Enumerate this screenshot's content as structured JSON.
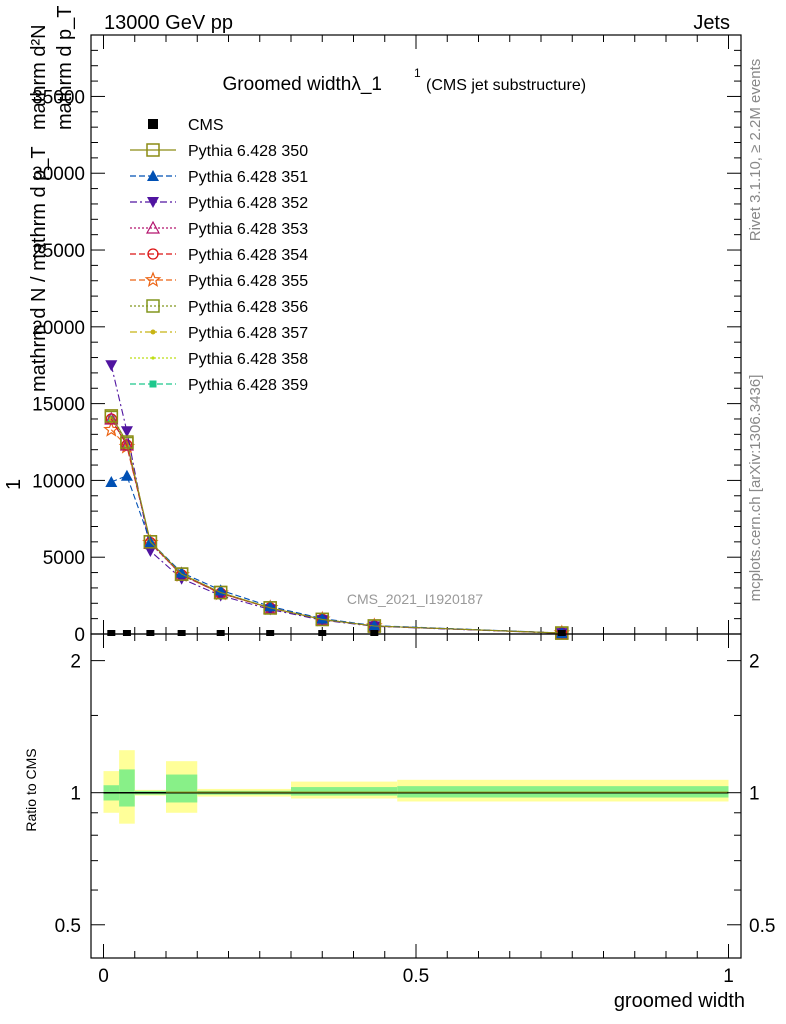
{
  "header": {
    "left": "13000 GeV pp",
    "right": "Jets"
  },
  "side_labels": {
    "rivet": "Rivet 3.1.10, ≥ 2.2M events",
    "mcplots": "mcplots.cern.ch [arXiv:1306.3436]"
  },
  "chart_data": [
    {
      "type": "line",
      "title": "Groomed widthλ_1",
      "title_sup": "1",
      "subtitle": "(CMS jet substructure)",
      "watermark": "CMS_2021_I1920187",
      "ylabel_lines": [
        "mathrm d²N",
        "mathrm d p_T mathrm d lambda",
        "1",
        "mathrm d N / mathrm d p_T"
      ],
      "xlim": [
        -0.02,
        1.02
      ],
      "ylim": [
        0,
        39000
      ],
      "y_ticks": [
        0,
        5000,
        10000,
        15000,
        20000,
        25000,
        30000,
        35000
      ],
      "y_tick_labels": [
        "0",
        "5000",
        "10000",
        "15000",
        "20000",
        "25000",
        "30000",
        "35000"
      ],
      "x": [
        0.0125,
        0.0375,
        0.075,
        0.125,
        0.1875,
        0.2667,
        0.35,
        0.4333,
        0.7333
      ],
      "data": {
        "name": "CMS",
        "values": [
          0,
          0,
          0,
          0,
          0,
          0,
          0,
          0,
          0
        ]
      },
      "series": [
        {
          "name": "Pythia 6.428 350",
          "color": "#8c8c14",
          "marker": "square-open",
          "dash": "solid",
          "values": [
            14200,
            12500,
            6000,
            3900,
            2700,
            1700,
            950,
            520,
            60
          ]
        },
        {
          "name": "Pythia 6.428 351",
          "color": "#0050b4",
          "marker": "triangle-up",
          "dash": "dashed",
          "values": [
            9900,
            10300,
            6000,
            4000,
            2850,
            1800,
            1000,
            550,
            65
          ]
        },
        {
          "name": "Pythia 6.428 352",
          "color": "#5014a0",
          "marker": "triangle-down",
          "dash": "dashdot",
          "values": [
            17500,
            13200,
            5400,
            3600,
            2500,
            1600,
            900,
            500,
            55
          ]
        },
        {
          "name": "Pythia 6.428 353",
          "color": "#b4146e",
          "marker": "triangle-up-open",
          "dash": "dotted",
          "values": [
            14000,
            12300,
            5900,
            3850,
            2650,
            1700,
            950,
            520,
            60
          ]
        },
        {
          "name": "Pythia 6.428 354",
          "color": "#dc1414",
          "marker": "circle-open",
          "dash": "dashed",
          "values": [
            14000,
            12300,
            5950,
            3850,
            2650,
            1700,
            950,
            520,
            60
          ]
        },
        {
          "name": "Pythia 6.428 355",
          "color": "#ec6414",
          "marker": "star-open",
          "dash": "dashed",
          "values": [
            13300,
            12200,
            5950,
            3850,
            2650,
            1700,
            950,
            520,
            60
          ]
        },
        {
          "name": "Pythia 6.428 356",
          "color": "#82961e",
          "marker": "square-open",
          "dash": "dotted",
          "values": [
            14100,
            12400,
            6000,
            3900,
            2700,
            1700,
            950,
            520,
            60
          ]
        },
        {
          "name": "Pythia 6.428 357",
          "color": "#c8b414",
          "marker": "dot",
          "dash": "dashdot",
          "values": [
            14000,
            12300,
            5950,
            3850,
            2650,
            1700,
            950,
            520,
            60
          ]
        },
        {
          "name": "Pythia 6.428 358",
          "color": "#bede14",
          "marker": "dot-small",
          "dash": "dotted",
          "values": [
            14000,
            12300,
            5950,
            3850,
            2650,
            1700,
            950,
            520,
            60
          ]
        },
        {
          "name": "Pythia 6.428 359",
          "color": "#1ec88c",
          "marker": "square",
          "dash": "dashed",
          "values": [
            14000,
            12300,
            5950,
            3850,
            2650,
            1700,
            950,
            520,
            60
          ]
        }
      ]
    },
    {
      "type": "band",
      "ylabel": "Ratio to CMS",
      "xlabel": "groomed width",
      "xlim": [
        -0.02,
        1.02
      ],
      "x_ticks": [
        0,
        0.5,
        1
      ],
      "x_tick_labels": [
        "0",
        "0.5",
        "1"
      ],
      "y_ticks": [
        0.5,
        1,
        2
      ],
      "y_tick_labels": [
        "0.5",
        "1",
        "2"
      ],
      "ylim_log": [
        0.42,
        2.3
      ],
      "ratio_line": 1,
      "bins": [
        {
          "x0": 0.0,
          "x1": 0.025,
          "inner": [
            0.96,
            1.04
          ],
          "outer": [
            0.9,
            1.12
          ]
        },
        {
          "x0": 0.025,
          "x1": 0.05,
          "inner": [
            0.93,
            1.13
          ],
          "outer": [
            0.85,
            1.25
          ]
        },
        {
          "x0": 0.05,
          "x1": 0.1,
          "inner": [
            0.99,
            1.01
          ],
          "outer": [
            0.985,
            1.015
          ]
        },
        {
          "x0": 0.1,
          "x1": 0.15,
          "inner": [
            0.95,
            1.1
          ],
          "outer": [
            0.9,
            1.18
          ]
        },
        {
          "x0": 0.15,
          "x1": 0.3,
          "inner": [
            0.99,
            1.01
          ],
          "outer": [
            0.98,
            1.02
          ]
        },
        {
          "x0": 0.3,
          "x1": 0.47,
          "inner": [
            0.985,
            1.03
          ],
          "outer": [
            0.97,
            1.06
          ]
        },
        {
          "x0": 0.47,
          "x1": 1.0,
          "inner": [
            0.975,
            1.035
          ],
          "outer": [
            0.955,
            1.07
          ]
        }
      ]
    }
  ]
}
